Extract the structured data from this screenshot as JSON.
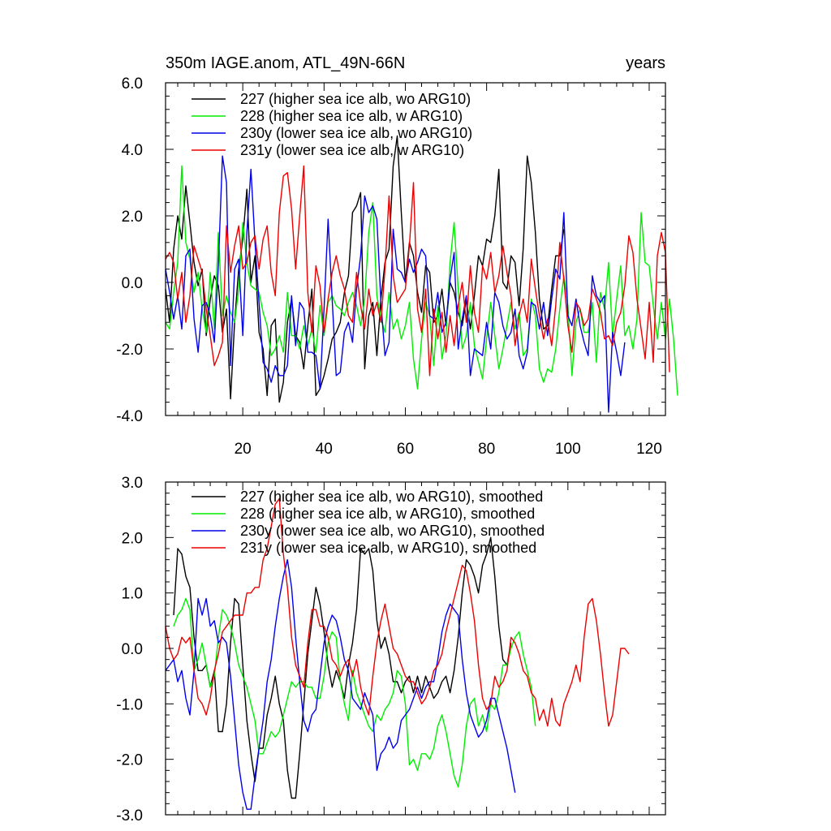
{
  "chart_data": [
    {
      "type": "line",
      "title_left": "350m IAGE.anom, ATL_49N-66N",
      "title_right": "years",
      "xlim": [
        1,
        124
      ],
      "ylim": [
        -4.0,
        6.0
      ],
      "xticks": [
        20,
        40,
        60,
        80,
        100,
        120
      ],
      "yticks": [
        -4.0,
        -2.0,
        0.0,
        2.0,
        4.0,
        6.0
      ],
      "ytick_labels": [
        "-4.0",
        "-2.0",
        "0.0",
        "2.0",
        "4.0",
        "6.0"
      ],
      "show_xtick_labels": true,
      "legend_position": "top-left",
      "series": [
        {
          "name": "227 (higher sea ice alb, wo ARG10)",
          "color": "#000000",
          "x_start": 1,
          "values": [
            -0.2,
            -1.2,
            1.0,
            2.0,
            1.3,
            2.9,
            1.8,
            0.6,
            -0.1,
            0.4,
            -1.6,
            -0.5,
            0.2,
            -0.1,
            -1.5,
            -0.8,
            -3.5,
            -1.2,
            0.4,
            1.3,
            2.8,
            0.0,
            0.8,
            -1.5,
            -2.0,
            -3.4,
            -1.3,
            -1.1,
            -3.6,
            -3.0,
            -1.2,
            -0.5,
            -1.6,
            -1.8,
            -2.6,
            -1.3,
            -0.2,
            -3.4,
            -3.2,
            -2.8,
            -2.3,
            -1.7,
            -1.5,
            -1.2,
            -0.3,
            0.2,
            2.1,
            2.3,
            2.7,
            -2.6,
            -1.0,
            -0.6,
            -2.2,
            -0.5,
            0.6,
            1.0,
            3.5,
            4.4,
            2.1,
            0.0,
            1.2,
            0.8,
            -0.3,
            -0.9,
            0.5,
            0.3,
            -1.2,
            -1.0,
            -0.2,
            -1.3,
            0.0,
            -0.3,
            -0.9,
            -1.3,
            -0.5,
            -1.4,
            -0.4,
            0.8,
            0.5,
            1.3,
            1.2,
            2.0,
            3.4,
            0.0,
            -0.2,
            0.8,
            0.6,
            -0.7,
            1.0,
            3.8,
            3.0,
            1.5,
            -0.5,
            -1.4,
            -1.3,
            -0.2,
            0.8,
            0.8,
            1.6
          ]
        },
        {
          "name": "228 (higher sea ice alb, w ARG10)",
          "color": "#00ee00",
          "x_start": 1,
          "values": [
            -1.2,
            -1.4,
            -0.3,
            0.6,
            3.5,
            1.2,
            0.7,
            -0.3,
            0.3,
            -0.8,
            -1.5,
            0.3,
            -1.4,
            1.5,
            -1.0,
            -0.4,
            -0.9,
            -1.2,
            -0.2,
            1.8,
            0.6,
            -0.1,
            -0.2,
            -0.3,
            -0.9,
            -1.3,
            -2.2,
            -2.0,
            -1.6,
            -2.1,
            -0.3,
            -1.6,
            -1.6,
            -2.0,
            -1.3,
            -1.9,
            -1.4,
            -2.1,
            -0.7,
            -1.6,
            -0.6,
            -0.4,
            -0.7,
            -0.8,
            -1.0,
            -0.6,
            -0.3,
            -0.7,
            -1.3,
            -0.5,
            1.5,
            2.4,
            -0.4,
            -1.1,
            -1.5,
            -0.3,
            -1.4,
            -1.1,
            -1.7,
            -1.3,
            -0.6,
            -2.3,
            -3.2,
            -1.7,
            -0.6,
            -1.0,
            -2.5,
            -0.7,
            -2.3,
            -1.6,
            0.6,
            1.8,
            -0.2,
            -2.0,
            -1.6,
            -0.6,
            -1.9,
            -2.4,
            -2.9,
            -1.7,
            -0.6,
            -1.6,
            -2.6,
            -2.0,
            -1.3,
            -0.6,
            -1.4,
            -0.9,
            -2.2,
            -2.0,
            -0.5,
            -1.0,
            -2.6,
            -3.0,
            -2.6,
            -2.7,
            -2.0,
            -0.8,
            0.2,
            -0.7,
            -2.8,
            -1.2,
            -0.8,
            -1.5,
            -1.5,
            -0.6,
            -2.4,
            -0.3,
            -0.8,
            0.6,
            -1.6,
            -0.5,
            0.5,
            -1.6,
            -1.3,
            -2.0,
            -1.1,
            2.1,
            0.6,
            0.5,
            -0.7,
            -1.7,
            -0.6,
            -1.7,
            -0.5,
            -1.7,
            -3.4
          ]
        },
        {
          "name": "230y (lower sea ice alb, wo ARG10)",
          "color": "#0000ee",
          "x_start": 1,
          "values": [
            0.4,
            -0.3,
            -1.1,
            -0.4,
            -1.4,
            0.8,
            1.0,
            -1.1,
            -2.1,
            -0.7,
            -0.6,
            -1.0,
            -1.8,
            0.5,
            3.8,
            3.0,
            -2.5,
            0.4,
            0.7,
            -1.6,
            1.5,
            3.4,
            1.2,
            -0.6,
            -2.4,
            -2.6,
            -3.0,
            -2.5,
            -2.8,
            -2.8,
            -2.5,
            -0.4,
            -1.9,
            -0.6,
            -0.8,
            -2.1,
            -2.1,
            -2.2,
            -3.2,
            -0.8,
            1.9,
            -0.5,
            -2.8,
            -2.7,
            -1.5,
            -1.2,
            -1.8,
            -0.2,
            0.8,
            2.6,
            2.1,
            2.3,
            1.9,
            -0.6,
            -2.2,
            -1.8,
            1.6,
            0.4,
            0.3,
            0.0,
            0.7,
            0.3,
            0.6,
            1.0,
            0.8,
            -1.0,
            -1.1,
            -0.3,
            -1.5,
            -1.2,
            0.1,
            0.9,
            -2.0,
            -1.1,
            -0.4,
            -2.8,
            -2.0,
            -2.1,
            -2.2,
            -1.2,
            -2.0,
            -0.3,
            -0.6,
            -1.3,
            -1.7,
            -1.5,
            -0.8,
            -2.2,
            -2.6,
            -2.1,
            -0.6,
            -0.7,
            -1.4,
            -0.6,
            -1.6,
            -0.5,
            0.4,
            0.1,
            2.1,
            -1.0,
            -1.3,
            -0.5,
            -1.3,
            -1.8,
            -2.2,
            0.2,
            -0.4,
            -0.6,
            -0.4,
            -3.9,
            -1.5,
            -2.1,
            -2.8,
            -1.8
          ]
        },
        {
          "name": "231y (lower sea ice alb, w ARG10)",
          "color": "#ee0000",
          "x_start": 1,
          "values": [
            0.7,
            0.9,
            0.6,
            -0.5,
            0.3,
            -1.2,
            -0.4,
            1.1,
            0.7,
            0.3,
            -0.8,
            -1.6,
            -2.5,
            -2.2,
            -1.8,
            1.7,
            0.3,
            1.1,
            1.7,
            0.4,
            0.6,
            1.2,
            1.4,
            0.4,
            1.3,
            1.7,
            0.3,
            -0.4,
            2.1,
            3.2,
            3.3,
            2.2,
            0.4,
            2.0,
            3.5,
            -0.3,
            -1.5,
            0.5,
            -0.1,
            -1.5,
            -0.5,
            0.3,
            0.8,
            0.2,
            -0.2,
            -1.0,
            -1.2,
            0.3,
            -0.7,
            -1.4,
            -0.2,
            -1.0,
            -0.6,
            -1.2,
            0.4,
            2.6,
            0.2,
            -0.6,
            -0.4,
            -0.2,
            1.1,
            3.0,
            -0.8,
            -1.5,
            -0.2,
            -2.8,
            -0.8,
            -1.7,
            -0.9,
            -2.1,
            -1.0,
            -1.9,
            -0.7,
            0.0,
            -1.2,
            0.5,
            -0.9,
            -1.5,
            0.5,
            0.1,
            0.9,
            -0.3,
            0.2,
            1.1,
            0.3,
            -0.4,
            -1.9,
            -1.0,
            -0.5,
            -1.2,
            0.7,
            -0.2,
            -1.0,
            -1.7,
            -1.1,
            -1.9,
            -0.7,
            1.2,
            0.1,
            -1.3,
            -2.1,
            -0.6,
            -0.8,
            -1.3,
            -1.1,
            -0.2,
            -0.5,
            -0.9,
            -1.7,
            -1.6,
            -1.9,
            -1.2,
            -0.9,
            -0.1,
            1.4,
            0.9,
            -0.5,
            -1.4,
            -2.3,
            -0.6,
            -2.4,
            0.8,
            1.5,
            0.9,
            -2.7
          ]
        }
      ]
    },
    {
      "type": "line",
      "title_left": "",
      "title_right": "",
      "xlim": [
        1,
        124
      ],
      "ylim": [
        -3.0,
        3.0
      ],
      "xticks": [
        20,
        40,
        60,
        80,
        100,
        120
      ],
      "yticks": [
        -3.0,
        -2.0,
        -1.0,
        0.0,
        1.0,
        2.0,
        3.0
      ],
      "ytick_labels": [
        "-3.0",
        "-2.0",
        "-1.0",
        "0.0",
        "1.0",
        "2.0",
        "3.0"
      ],
      "show_xtick_labels": false,
      "legend_position": "top-left",
      "series": [
        {
          "name": "227 (higher sea ice alb, wo ARG10), smoothed",
          "color": "#000000",
          "x_start": 3,
          "values": [
            0.6,
            1.8,
            1.7,
            1.3,
            1.1,
            0.2,
            -0.4,
            -0.4,
            -0.3,
            -0.7,
            -0.4,
            -1.5,
            -1.5,
            -1.0,
            0.1,
            0.9,
            0.8,
            -0.3,
            -1.3,
            -1.9,
            -2.4,
            -1.8,
            -1.8,
            -1.2,
            -0.9,
            -0.5,
            -1.0,
            -1.3,
            -2.2,
            -2.7,
            -2.7,
            -1.9,
            -1.0,
            -0.1,
            0.5,
            1.1,
            0.8,
            0.3,
            -0.3,
            -0.7,
            -0.4,
            -0.6,
            -0.9,
            -0.3,
            0.1,
            0.7,
            1.8,
            1.7,
            1.8,
            1.4,
            0.5,
            0.0,
            0.2,
            -0.1,
            -0.6,
            -0.6,
            -0.8,
            -0.6,
            -0.5,
            -0.8,
            -0.5,
            -0.8,
            -0.5,
            -0.7,
            -0.9,
            -0.8,
            -0.6,
            -0.5,
            -0.8,
            -0.4,
            0.2,
            1.0,
            1.6,
            1.5,
            1.3,
            1.0,
            1.5,
            1.7,
            2.0,
            1.3,
            0.4,
            -0.2,
            -0.3,
            0.1
          ]
        },
        {
          "name": "228 (higher sea ice alb, w ARG10), smoothed",
          "color": "#00ee00",
          "x_start": 3,
          "values": [
            0.4,
            0.6,
            0.7,
            0.9,
            0.7,
            -0.4,
            -0.2,
            0.1,
            -0.3,
            -0.7,
            -0.5,
            0.2,
            0.7,
            0.6,
            0.4,
            0.1,
            -0.3,
            -0.5,
            -0.7,
            -1.0,
            -1.3,
            -1.9,
            -1.9,
            -1.7,
            -1.5,
            -1.6,
            -1.5,
            -1.2,
            -0.9,
            -0.6,
            -0.7,
            -0.6,
            -0.6,
            -0.7,
            -0.7,
            -0.9,
            -0.9,
            -0.5,
            0.1,
            0.3,
            0.2,
            -0.6,
            -1.0,
            -1.3,
            -0.4,
            -0.8,
            -1.0,
            -1.2,
            -1.4,
            -1.5,
            -1.2,
            -1.3,
            -1.1,
            -1.0,
            -0.8,
            -0.4,
            -0.5,
            -1.0,
            -2.1,
            -2.0,
            -2.2,
            -1.9,
            -1.9,
            -2.0,
            -1.8,
            -1.4,
            -1.2,
            -1.5,
            -1.9,
            -2.3,
            -2.5,
            -2.1,
            -1.4,
            -1.0,
            -0.9,
            -1.4,
            -1.2,
            -1.5,
            -1.0,
            -1.1,
            -0.8,
            -0.3,
            -0.3,
            0.0,
            0.2,
            0.3,
            -0.1,
            -0.4,
            -0.7,
            -1.4
          ]
        },
        {
          "name": "230y (lower sea ice alb, wo ARG10), smoothed",
          "color": "#0000ee",
          "x_start": 1,
          "values": [
            -0.4,
            -0.3,
            -0.2,
            -0.6,
            -0.4,
            -0.9,
            -1.2,
            -0.4,
            0.9,
            0.6,
            0.9,
            0.4,
            0.5,
            0.1,
            0.2,
            0.1,
            -0.5,
            -1.3,
            -2.1,
            -2.6,
            -2.9,
            -2.9,
            -2.3,
            -1.8,
            -1.3,
            -0.6,
            -0.2,
            0.4,
            0.9,
            1.3,
            1.6,
            1.1,
            0.2,
            -0.6,
            -1.3,
            -1.5,
            -1.2,
            -1.1,
            -0.5,
            0.1,
            0.4,
            0.6,
            0.5,
            0.2,
            -0.2,
            -0.4,
            -0.9,
            -1.0,
            -1.1,
            -0.8,
            -1.0,
            -1.2,
            -2.2,
            -1.9,
            -1.8,
            -1.6,
            -1.8,
            -1.7,
            -1.3,
            -1.2,
            -1.1,
            -0.9,
            -0.7,
            -0.9,
            -0.7,
            -0.6,
            -0.6,
            -0.2,
            0.3,
            0.6,
            0.8,
            0.7,
            0.6,
            -0.2,
            -0.8,
            -1.2,
            -1.4,
            -1.6,
            -1.5,
            -1.3,
            -0.9,
            -0.9,
            -1.2,
            -1.5,
            -1.8,
            -2.2,
            -2.6
          ]
        },
        {
          "name": "231y (lower sea ice alb, w ARG10), smoothed",
          "color": "#ee0000",
          "x_start": 1,
          "values": [
            0.4,
            0.0,
            -0.2,
            -0.1,
            0.2,
            0.1,
            0.2,
            -0.4,
            -0.9,
            -1.0,
            -1.2,
            -0.9,
            -0.4,
            -0.1,
            0.3,
            0.4,
            0.5,
            0.6,
            0.6,
            0.6,
            1.0,
            1.0,
            1.1,
            1.1,
            1.6,
            1.8,
            2.2,
            2.6,
            2.7,
            1.7,
            1.1,
            0.2,
            -0.3,
            -0.5,
            -0.7,
            0.1,
            0.7,
            0.7,
            0.4,
            0.4,
            0.2,
            -0.2,
            -0.3,
            -0.5,
            -0.3,
            -0.2,
            -0.5,
            -0.2,
            -0.7,
            -1.0,
            -1.2,
            -0.5,
            0.1,
            0.5,
            0.8,
            0.4,
            0.0,
            -0.1,
            -0.3,
            -0.5,
            -0.6,
            -0.6,
            -0.8,
            -1.0,
            -0.9,
            -0.7,
            -0.4,
            -0.3,
            -0.1,
            0.3,
            0.6,
            0.9,
            1.2,
            1.5,
            1.4,
            1.0,
            0.5,
            -0.3,
            -0.9,
            -1.1,
            -1.0,
            -0.5,
            -0.7,
            -0.6,
            -0.4,
            0.2,
            0.1,
            -0.1,
            -0.4,
            -0.5,
            -0.8,
            -0.9,
            -1.3,
            -1.1,
            -1.4,
            -0.9,
            -1.3,
            -1.4,
            -1.0,
            -0.8,
            -0.6,
            -0.3,
            -0.6,
            0.2,
            0.8,
            0.9,
            0.5,
            -0.1,
            -0.8,
            -1.4,
            -1.2,
            -0.6,
            0.0,
            0.0,
            -0.1
          ]
        }
      ]
    }
  ]
}
